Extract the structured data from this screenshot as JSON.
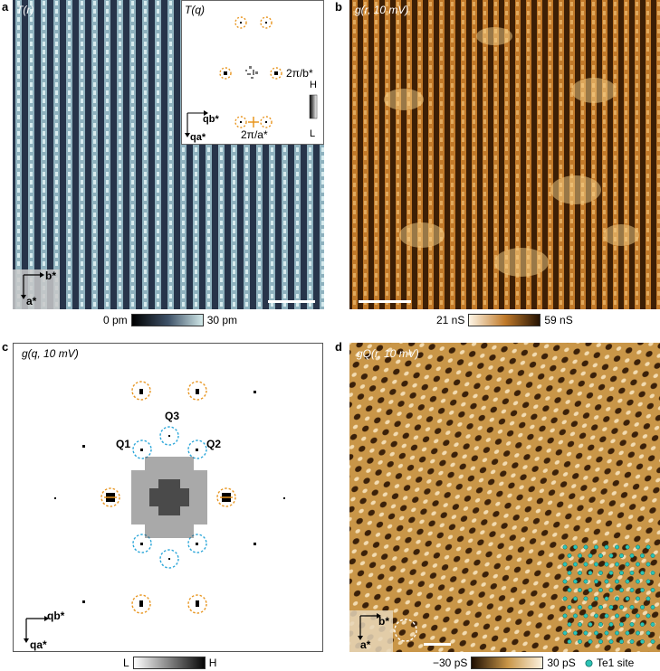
{
  "panels": {
    "a": {
      "letter": "a",
      "title": "T(r)",
      "inset_title": "T(q)",
      "inset_label_b": "2π/b*",
      "inset_label_a": "2π/a*",
      "inset_colorbar_high": "H",
      "inset_colorbar_low": "L",
      "inset_axis_x": "qb*",
      "inset_axis_y": "qa*",
      "axis_x": "b*",
      "axis_y": "a*",
      "colorbar_min": "0 pm",
      "colorbar_max": "30 pm"
    },
    "b": {
      "letter": "b",
      "title": "g(r, 10 mV)",
      "colorbar_min": "21 nS",
      "colorbar_max": "59 nS"
    },
    "c": {
      "letter": "c",
      "title": "g(q, 10 mV)",
      "q1": "Q1",
      "q2": "Q2",
      "q3": "Q3",
      "axis_x": "qb*",
      "axis_y": "qa*",
      "colorbar_min": "L",
      "colorbar_max": "H"
    },
    "d": {
      "letter": "d",
      "title": "gQ(r, 10 mV)",
      "axis_x": "b*",
      "axis_y": "a*",
      "colorbar_min": "−30 pS",
      "colorbar_max": "30 pS",
      "legend": "Te1 site"
    }
  },
  "colors": {
    "orange_circle": "#e8951f",
    "blue_circle": "#2aa6d9",
    "teal_dot": "#2ec4b6"
  }
}
